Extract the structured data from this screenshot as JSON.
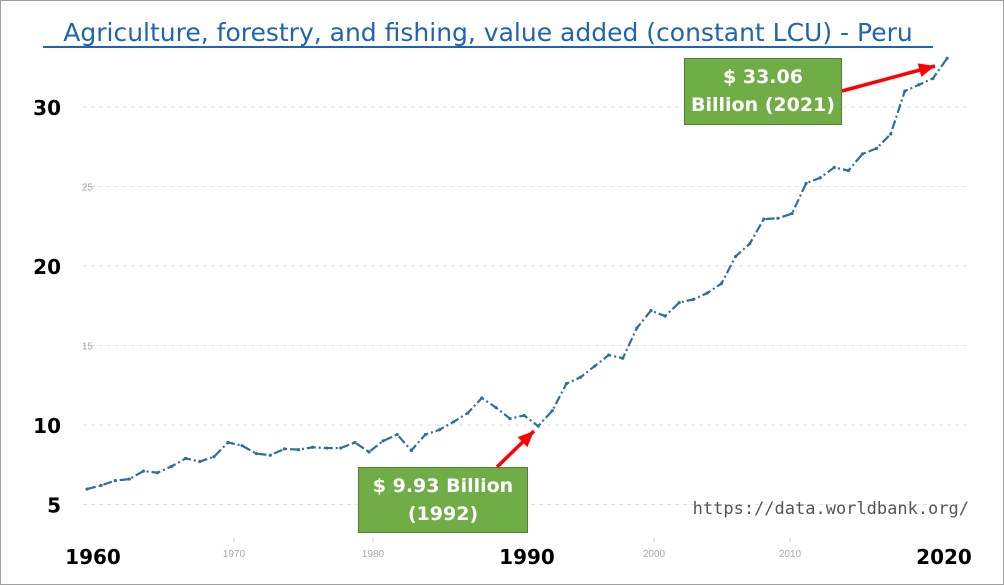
{
  "chart_data": {
    "type": "line",
    "title": "Agriculture, forestry, and fishing, value added (constant LCU) - Peru",
    "xlabel": "",
    "ylabel": "",
    "units": "Billion LCU",
    "xlim": [
      1960,
      2021
    ],
    "ylim": [
      5,
      33
    ],
    "grid": true,
    "x_ticks_major": [
      "1960",
      "1990",
      "2020"
    ],
    "x_ticks_minor": [
      "1970",
      "1980",
      "2000",
      "2010"
    ],
    "y_ticks_major": [
      "30",
      "20",
      "10",
      "5"
    ],
    "y_ticks_minor": [
      "25",
      "15"
    ],
    "line_color": "#2e6f9c",
    "series": [
      {
        "name": "Peru",
        "x": [
          1960,
          1961,
          1962,
          1963,
          1964,
          1965,
          1966,
          1967,
          1968,
          1969,
          1970,
          1971,
          1972,
          1973,
          1974,
          1975,
          1976,
          1977,
          1978,
          1979,
          1980,
          1981,
          1982,
          1983,
          1984,
          1985,
          1986,
          1987,
          1988,
          1989,
          1990,
          1991,
          1992,
          1993,
          1994,
          1995,
          1996,
          1997,
          1998,
          1999,
          2000,
          2001,
          2002,
          2003,
          2004,
          2005,
          2006,
          2007,
          2008,
          2009,
          2010,
          2011,
          2012,
          2013,
          2014,
          2015,
          2016,
          2017,
          2018,
          2019,
          2020,
          2021
        ],
        "values": [
          5.97,
          6.2,
          6.5,
          6.6,
          7.1,
          7.0,
          7.4,
          7.9,
          7.7,
          8.0,
          8.9,
          8.7,
          8.2,
          8.1,
          8.5,
          8.45,
          8.6,
          8.55,
          8.55,
          8.9,
          8.3,
          9.0,
          9.4,
          8.4,
          9.4,
          9.7,
          10.2,
          10.75,
          11.7,
          11.1,
          10.4,
          10.6,
          9.93,
          10.9,
          12.6,
          13.0,
          13.7,
          14.4,
          14.2,
          16.1,
          17.2,
          16.85,
          17.7,
          17.9,
          18.3,
          18.9,
          20.6,
          21.4,
          22.95,
          23.0,
          23.3,
          25.2,
          25.55,
          26.2,
          26.0,
          27.05,
          27.4,
          28.3,
          31.0,
          31.4,
          31.8,
          33.06
        ]
      }
    ],
    "annotations": [
      {
        "text_line1": "$ 9.93 Billion",
        "text_line2": "(1992)",
        "x": 1992,
        "y": 9.93
      },
      {
        "text_line1": "$ 33.06",
        "text_line2": "Billion (2021)",
        "x": 2021,
        "y": 33.06
      }
    ],
    "annotation_color": "#70ad47",
    "arrow_color": "#ff0000",
    "source": "https://data.worldbank.org/"
  }
}
